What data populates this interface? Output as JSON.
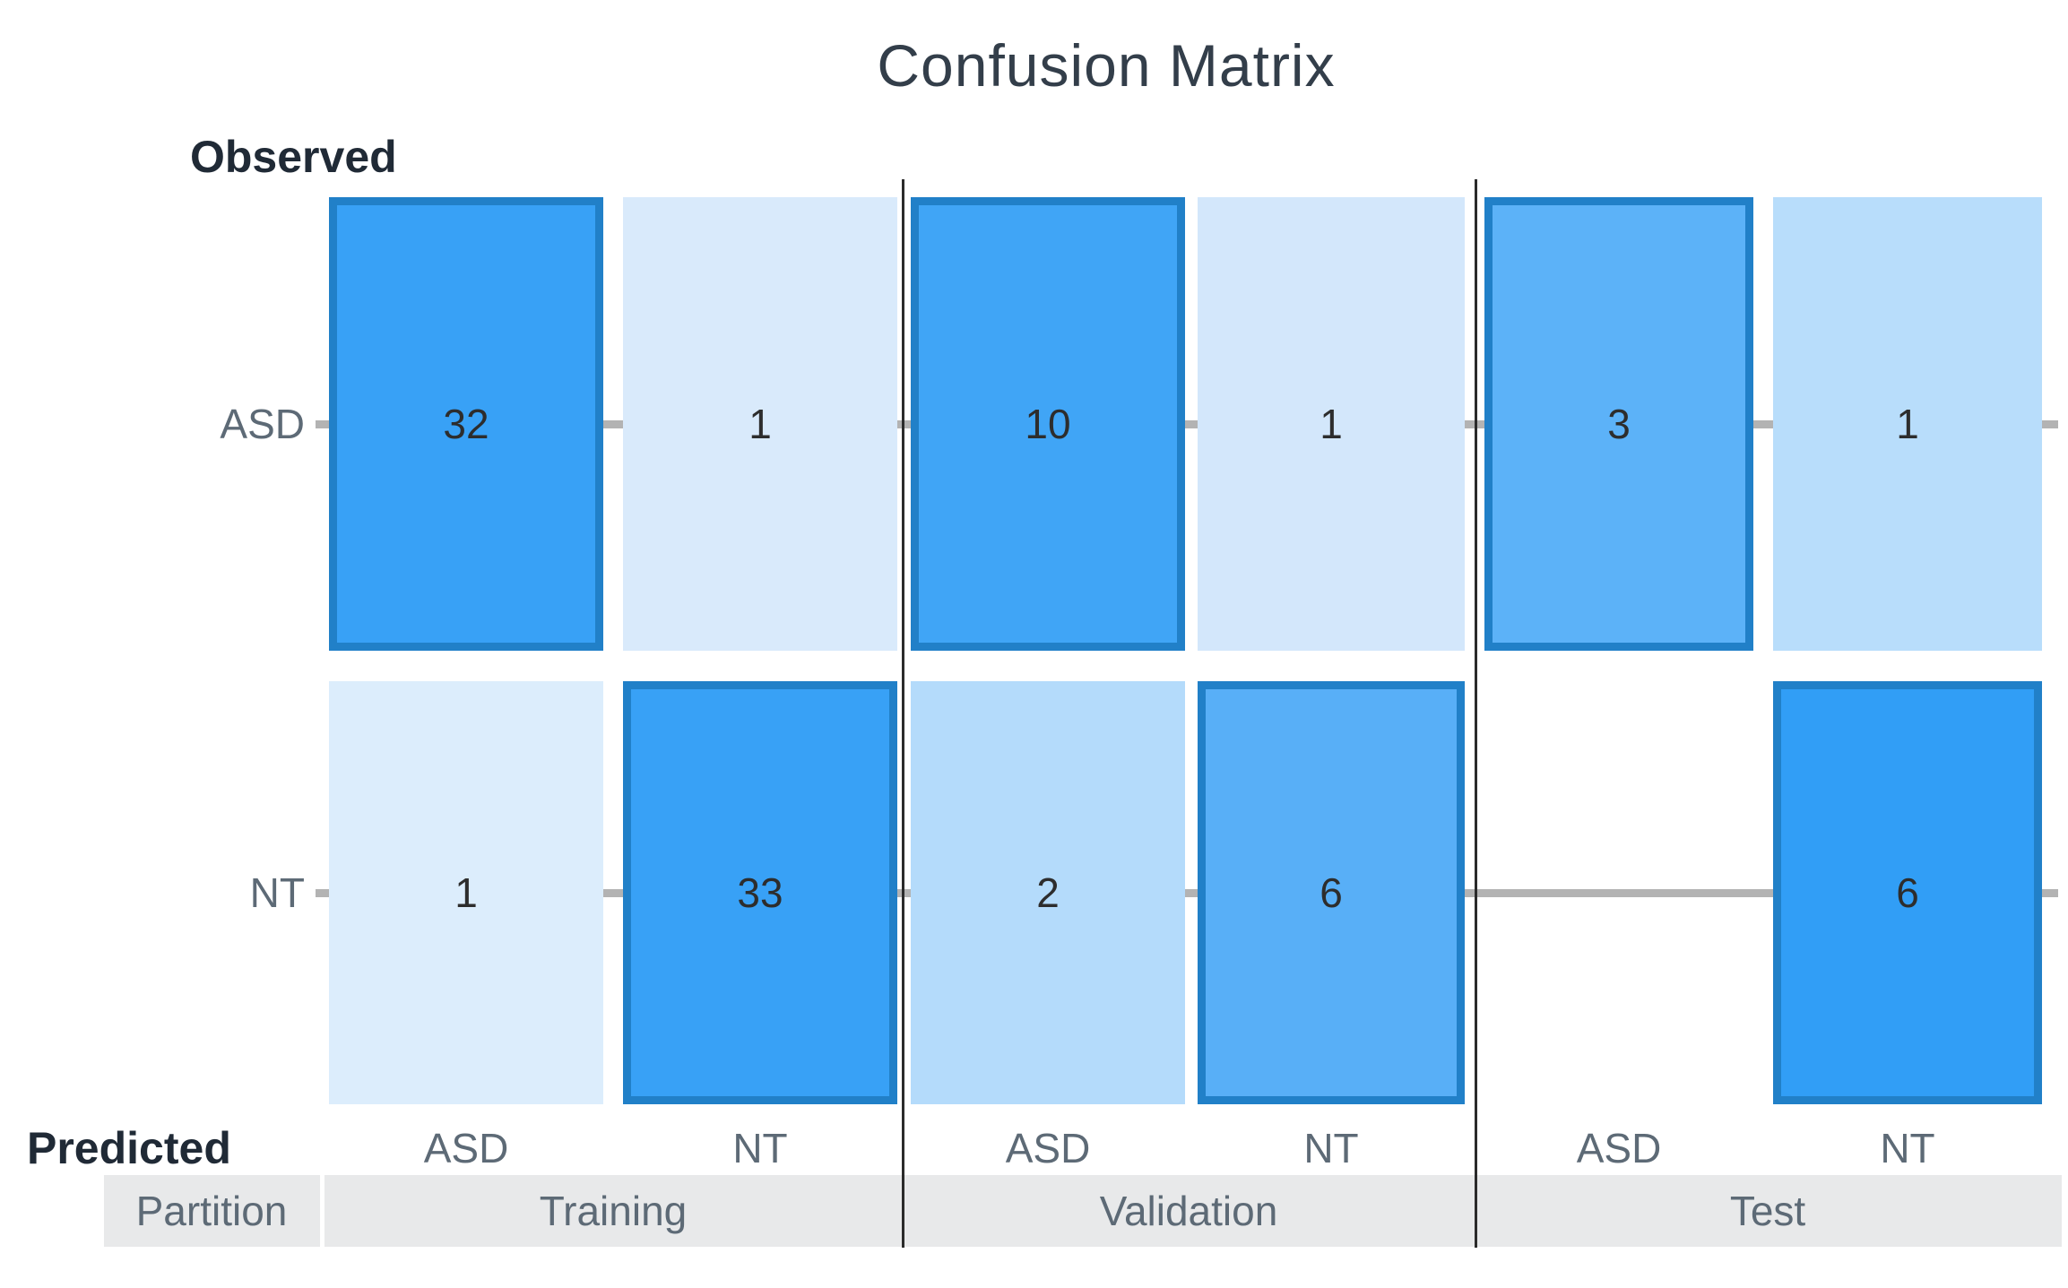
{
  "chart_data": {
    "type": "heatmap",
    "title": "Confusion Matrix",
    "y_axis_label": "Observed",
    "x_axis_label": "Predicted",
    "partition_axis_label": "Partition",
    "row_labels": [
      "ASD",
      "NT"
    ],
    "col_labels": [
      "ASD",
      "NT",
      "ASD",
      "NT",
      "ASD",
      "NT"
    ],
    "partitions": [
      {
        "name": "Training",
        "matrix": [
          [
            32,
            1
          ],
          [
            1,
            33
          ]
        ]
      },
      {
        "name": "Validation",
        "matrix": [
          [
            10,
            1
          ],
          [
            2,
            6
          ]
        ]
      },
      {
        "name": "Test",
        "matrix": [
          [
            3,
            1
          ],
          [
            null,
            6
          ]
        ]
      }
    ],
    "cells": [
      {
        "partition": "Training",
        "observed": "ASD",
        "predicted": "ASD",
        "value": "32",
        "fill": "#38a1f6",
        "bordered": true,
        "row": 0,
        "col": 0
      },
      {
        "partition": "Training",
        "observed": "ASD",
        "predicted": "NT",
        "value": "1",
        "fill": "#d9eafb",
        "bordered": false,
        "row": 0,
        "col": 1
      },
      {
        "partition": "Training",
        "observed": "NT",
        "predicted": "ASD",
        "value": "1",
        "fill": "#dcedfc",
        "bordered": false,
        "row": 1,
        "col": 0
      },
      {
        "partition": "Training",
        "observed": "NT",
        "predicted": "NT",
        "value": "33",
        "fill": "#38a1f6",
        "bordered": true,
        "row": 1,
        "col": 1
      },
      {
        "partition": "Validation",
        "observed": "ASD",
        "predicted": "ASD",
        "value": "10",
        "fill": "#40a5f6",
        "bordered": true,
        "row": 0,
        "col": 2
      },
      {
        "partition": "Validation",
        "observed": "ASD",
        "predicted": "NT",
        "value": "1",
        "fill": "#d3e7fb",
        "bordered": false,
        "row": 0,
        "col": 3
      },
      {
        "partition": "Validation",
        "observed": "NT",
        "predicted": "ASD",
        "value": "2",
        "fill": "#b4dbfb",
        "bordered": false,
        "row": 1,
        "col": 2
      },
      {
        "partition": "Validation",
        "observed": "NT",
        "predicted": "NT",
        "value": "6",
        "fill": "#58aff7",
        "bordered": true,
        "row": 1,
        "col": 3
      },
      {
        "partition": "Test",
        "observed": "ASD",
        "predicted": "ASD",
        "value": "3",
        "fill": "#5cb2f8",
        "bordered": true,
        "row": 0,
        "col": 4
      },
      {
        "partition": "Test",
        "observed": "ASD",
        "predicted": "NT",
        "value": "1",
        "fill": "#b8ddfb",
        "bordered": false,
        "row": 0,
        "col": 5
      },
      {
        "partition": "Test",
        "observed": "NT",
        "predicted": "ASD",
        "value": null,
        "fill": null,
        "bordered": false,
        "row": 1,
        "col": 4
      },
      {
        "partition": "Test",
        "observed": "NT",
        "predicted": "NT",
        "value": "6",
        "fill": "#319ef6",
        "bordered": true,
        "row": 1,
        "col": 5
      }
    ],
    "colors": {
      "background": "#ffffff",
      "cell_border": "#2180c8",
      "gridline": "#b3b3b3",
      "separator": "#2b2b2b",
      "partition_band_bg": "#e8e9ea",
      "label_text": "#5d6a76",
      "number_text": "#2d2d2d",
      "title_text": "#333e4a",
      "axis_title_text": "#202a36"
    },
    "layout_notes": {
      "grid": "off except row-center gray lines",
      "legend": "none",
      "empty_cell": "Test / Observed NT / Predicted ASD has no box; gridline shows through"
    }
  }
}
